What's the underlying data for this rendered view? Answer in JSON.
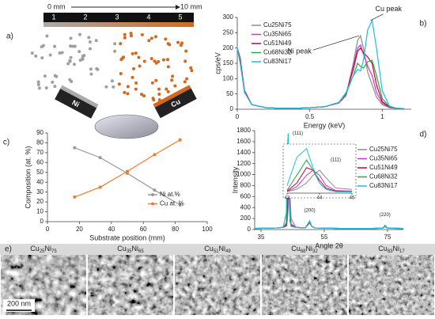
{
  "panel_a": {
    "label": "a)",
    "scale_start": "0 mm",
    "scale_end": "10 mm",
    "positions": [
      "1",
      "2",
      "3",
      "4",
      "5"
    ],
    "target_ni": "Ni",
    "target_cu": "Cu"
  },
  "panel_e": {
    "label": "e)",
    "scale_bar": "200 nm",
    "samples": [
      {
        "el1": "Cu",
        "n1": "25",
        "el2": "Ni",
        "n2": "75"
      },
      {
        "el1": "Cu",
        "n1": "35",
        "el2": "Ni",
        "n2": "65"
      },
      {
        "el1": "Cu",
        "n1": "51",
        "el2": "Ni",
        "n2": "49"
      },
      {
        "el1": "Cu",
        "n1": "68",
        "el2": "Ni",
        "n2": "32"
      },
      {
        "el1": "Cu",
        "n1": "83",
        "el2": "Ni",
        "n2": "17"
      }
    ]
  },
  "chart_data": [
    {
      "type": "line",
      "label": "b)",
      "xlabel": "Energy (keV)",
      "ylabel": "cps/eV",
      "xlim": [
        0,
        1.2
      ],
      "xticks": [
        0,
        0.5,
        1
      ],
      "ylim": [
        0,
        300
      ],
      "yticks": [
        0,
        50,
        100,
        150,
        200,
        250,
        300
      ],
      "legend": "upper left",
      "x": [
        0,
        0.02,
        0.05,
        0.1,
        0.2,
        0.3,
        0.4,
        0.5,
        0.6,
        0.7,
        0.75,
        0.8,
        0.83,
        0.85,
        0.87,
        0.9,
        0.93,
        0.96,
        1.0,
        1.05,
        1.1,
        1.15
      ],
      "series": [
        {
          "name": "Cu25Ni75",
          "color": "#8c8c8c",
          "values": [
            200,
            170,
            60,
            15,
            5,
            3,
            3,
            5,
            8,
            20,
            45,
            150,
            225,
            240,
            200,
            120,
            80,
            40,
            15,
            5,
            3,
            2
          ]
        },
        {
          "name": "Cu35Ni65",
          "color": "#cc33cc",
          "values": [
            200,
            165,
            60,
            15,
            5,
            3,
            3,
            5,
            8,
            20,
            45,
            140,
            200,
            210,
            180,
            140,
            110,
            55,
            20,
            6,
            3,
            2
          ]
        },
        {
          "name": "Cu51Ni49",
          "color": "#cc0033",
          "values": [
            200,
            160,
            60,
            15,
            5,
            3,
            3,
            5,
            8,
            22,
            50,
            130,
            190,
            200,
            185,
            170,
            150,
            80,
            25,
            7,
            3,
            2
          ]
        },
        {
          "name": "Cu68Ni32",
          "color": "#22aa44",
          "values": [
            200,
            155,
            55,
            15,
            5,
            3,
            3,
            5,
            8,
            22,
            50,
            110,
            150,
            140,
            135,
            155,
            160,
            110,
            35,
            8,
            3,
            2
          ]
        },
        {
          "name": "Cu83Ni17",
          "color": "#22bbdd",
          "values": [
            200,
            150,
            55,
            15,
            5,
            3,
            3,
            5,
            8,
            22,
            55,
            110,
            130,
            125,
            160,
            260,
            290,
            200,
            60,
            10,
            3,
            2
          ]
        }
      ],
      "annotations": [
        {
          "text": "Ni peak",
          "x": 0.85,
          "y": 240
        },
        {
          "text": "Cu peak",
          "x": 0.93,
          "y": 290
        }
      ]
    },
    {
      "type": "line",
      "label": "c)",
      "xlabel": "Substrate position (mm)",
      "ylabel": "Composition (at. %)",
      "xlim": [
        0,
        100
      ],
      "xticks": [
        0,
        20,
        40,
        60,
        80,
        100
      ],
      "ylim": [
        0,
        90
      ],
      "yticks": [
        0,
        10,
        20,
        30,
        40,
        50,
        60,
        70,
        80,
        90
      ],
      "legend": "lower right",
      "markers": true,
      "x": [
        17,
        33,
        50,
        67,
        83
      ],
      "series": [
        {
          "name": "Ni at.%",
          "color": "#999999",
          "values": [
            75,
            65,
            49,
            32,
            17
          ]
        },
        {
          "name": "Cu at. %",
          "color": "#ed7d31",
          "values": [
            25,
            35,
            51,
            68,
            83
          ]
        }
      ]
    },
    {
      "type": "line",
      "label": "d)",
      "xlabel": "Angle 2θ",
      "ylabel": "Intensity",
      "xlim": [
        33,
        80
      ],
      "xticks": [
        35,
        55,
        75
      ],
      "ylim": [
        0,
        1800
      ],
      "yticks": [
        0,
        200,
        400,
        600,
        800,
        1000,
        1200,
        1400,
        1600,
        1800
      ],
      "legend": "upper right",
      "x": [
        33,
        40,
        42,
        43,
        43.3,
        43.6,
        43.8,
        44,
        44.2,
        44.5,
        46,
        49,
        50.4,
        51,
        52,
        60,
        70,
        73.5,
        74.2,
        75,
        80
      ],
      "series": [
        {
          "name": "Cu25Ni75",
          "color": "#8c8c8c",
          "values": [
            20,
            30,
            40,
            60,
            150,
            400,
            700,
            900,
            600,
            200,
            40,
            30,
            120,
            60,
            30,
            20,
            20,
            25,
            60,
            25,
            20
          ]
        },
        {
          "name": "Cu35Ni65",
          "color": "#cc33cc",
          "values": [
            20,
            30,
            40,
            70,
            250,
            700,
            900,
            700,
            300,
            100,
            40,
            30,
            130,
            60,
            30,
            20,
            20,
            25,
            55,
            25,
            20
          ]
        },
        {
          "name": "Cu51Ni49",
          "color": "#cc0033",
          "values": [
            20,
            30,
            40,
            80,
            400,
            1000,
            900,
            500,
            200,
            80,
            40,
            30,
            140,
            60,
            30,
            20,
            20,
            25,
            60,
            25,
            20
          ]
        },
        {
          "name": "Cu68Ni32",
          "color": "#22aa44",
          "values": [
            20,
            30,
            40,
            120,
            700,
            1300,
            900,
            400,
            150,
            60,
            40,
            30,
            150,
            60,
            30,
            20,
            20,
            25,
            60,
            25,
            20
          ]
        },
        {
          "name": "Cu83Ni17",
          "color": "#22bbdd",
          "values": [
            20,
            30,
            40,
            300,
            1400,
            1750,
            1000,
            400,
            150,
            60,
            40,
            30,
            160,
            60,
            30,
            20,
            20,
            25,
            80,
            25,
            20
          ]
        }
      ],
      "annotations": [
        {
          "text": "(111)",
          "x": 43.5,
          "y": 1750
        },
        {
          "text": "(200)",
          "x": 50.4,
          "y": 230
        },
        {
          "text": "(220)",
          "x": 74.2,
          "y": 150
        }
      ],
      "inset": {
        "xlim": [
          43,
          45
        ],
        "xticks": [
          43,
          44,
          45
        ],
        "ylim": [
          0,
          1800
        ],
        "annotation": {
          "text": "(111)",
          "x": 44.5,
          "y": 1300
        }
      }
    }
  ]
}
